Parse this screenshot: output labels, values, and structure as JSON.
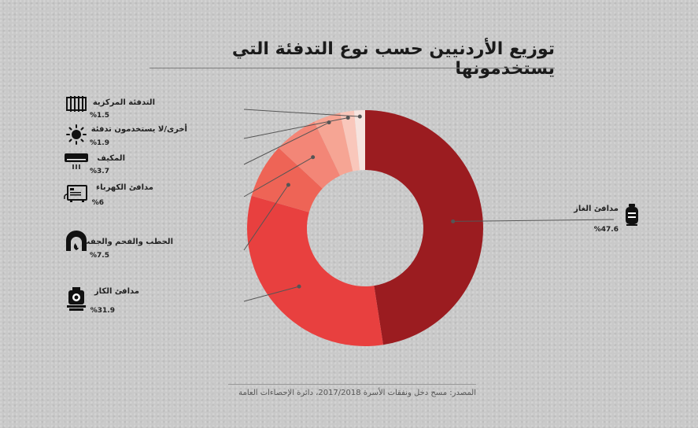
{
  "chart_data": {
    "type": "pie",
    "title": "توزيع الأردنيين حسب نوع التدفئة التي يستخدمونها",
    "categories": [
      "مدافئ الغاز",
      "مدافئ الكاز",
      "الحطب والفحم والجفت",
      "مدافئ الكهرباء",
      "المكيف",
      "أخرى/لا يستخدمون تدفئة",
      "التدفئة المركزية"
    ],
    "values": [
      47.6,
      31.9,
      7.5,
      6,
      3.7,
      1.9,
      1.5
    ],
    "value_labels": [
      "%47.6",
      "%31.9",
      "%7.5",
      "%6",
      "%3.7",
      "%1.9",
      "%1.5"
    ],
    "colors": [
      "#9b1c20",
      "#e8403f",
      "#ee6456",
      "#f38677",
      "#f6a594",
      "#f9c7bb",
      "#f6e4df"
    ],
    "hole": "donut"
  },
  "source": "المصدر: مسح دخل ونفقات الأسرة 2017/2018، دائرة الإحصاءات العامة",
  "icons": [
    "gas-cylinder-icon",
    "kerosene-heater-icon",
    "fireplace-icon",
    "electric-heater-icon",
    "air-conditioner-icon",
    "sun-icon",
    "radiator-icon"
  ]
}
